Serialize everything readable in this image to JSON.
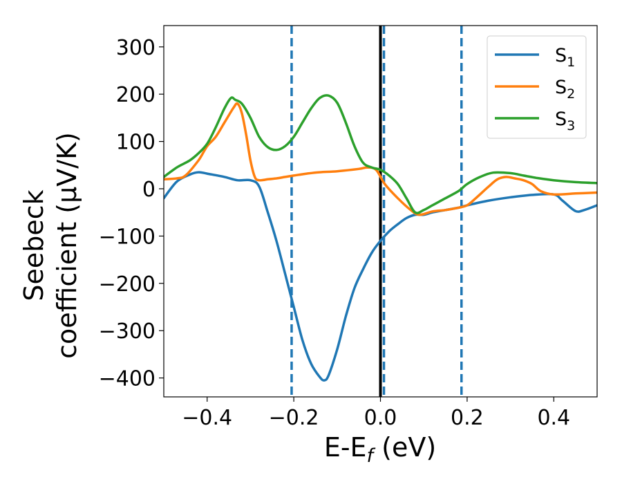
{
  "chart_data": {
    "type": "line",
    "xlabel_main": "E-E",
    "xlabel_sub": "f",
    "xlabel_tail": " (eV)",
    "ylabel_line1": "Seebeck",
    "ylabel_line2": "coefficient  (μV/K)",
    "xlim": [
      -0.5,
      0.5
    ],
    "ylim": [
      -440,
      345
    ],
    "xticks": [
      -0.4,
      -0.2,
      0.0,
      0.2,
      0.4
    ],
    "xtick_labels": [
      "−0.4",
      "−0.2",
      "0.0",
      "0.2",
      "0.4"
    ],
    "yticks": [
      300,
      200,
      100,
      0,
      -100,
      -200,
      -300,
      -400
    ],
    "ytick_labels": [
      "300",
      "200",
      "100",
      "0",
      "−100",
      "−200",
      "−300",
      "−400"
    ],
    "grid": false,
    "legend_position": "top-right",
    "vlines": [
      {
        "x": -0.205,
        "style": "dashed",
        "color": "#1f77b4"
      },
      {
        "x": 0.0,
        "style": "solid",
        "color": "#000000"
      },
      {
        "x": 0.008,
        "style": "dashed",
        "color": "#1f77b4"
      },
      {
        "x": 0.187,
        "style": "dashed",
        "color": "#1f77b4"
      }
    ],
    "series": [
      {
        "name": "S",
        "sub": "1",
        "color": "#1f77b4",
        "x": [
          -0.5,
          -0.47,
          -0.44,
          -0.42,
          -0.4,
          -0.36,
          -0.33,
          -0.3,
          -0.28,
          -0.26,
          -0.24,
          -0.22,
          -0.2,
          -0.18,
          -0.16,
          -0.14,
          -0.13,
          -0.12,
          -0.1,
          -0.08,
          -0.06,
          -0.04,
          -0.02,
          0.0,
          0.02,
          0.04,
          0.06,
          0.08,
          0.1,
          0.12,
          0.15,
          0.18,
          0.2,
          0.25,
          0.3,
          0.35,
          0.4,
          0.42,
          0.45,
          0.47,
          0.5
        ],
        "y": [
          -20,
          15,
          30,
          35,
          32,
          25,
          18,
          18,
          5,
          -50,
          -110,
          -180,
          -250,
          -320,
          -370,
          -398,
          -405,
          -395,
          -340,
          -270,
          -210,
          -170,
          -135,
          -110,
          -90,
          -75,
          -62,
          -55,
          -55,
          -50,
          -45,
          -40,
          -35,
          -25,
          -18,
          -13,
          -12,
          -25,
          -47,
          -45,
          -35
        ]
      },
      {
        "name": "S",
        "sub": "2",
        "color": "#ff7f0e",
        "x": [
          -0.5,
          -0.47,
          -0.45,
          -0.42,
          -0.4,
          -0.38,
          -0.36,
          -0.34,
          -0.33,
          -0.32,
          -0.31,
          -0.3,
          -0.29,
          -0.28,
          -0.26,
          -0.24,
          -0.22,
          -0.2,
          -0.17,
          -0.14,
          -0.1,
          -0.05,
          -0.03,
          -0.01,
          0.01,
          0.04,
          0.07,
          0.09,
          0.12,
          0.15,
          0.18,
          0.2,
          0.22,
          0.25,
          0.27,
          0.29,
          0.31,
          0.33,
          0.35,
          0.37,
          0.4,
          0.45,
          0.5
        ],
        "y": [
          20,
          22,
          28,
          60,
          90,
          110,
          140,
          170,
          180,
          160,
          115,
          60,
          25,
          18,
          20,
          22,
          25,
          28,
          32,
          35,
          37,
          42,
          45,
          40,
          10,
          -20,
          -45,
          -55,
          -48,
          -45,
          -40,
          -35,
          -20,
          5,
          20,
          25,
          22,
          18,
          10,
          -5,
          -12,
          -10,
          -8
        ]
      },
      {
        "name": "S",
        "sub": "3",
        "color": "#2ca02c",
        "x": [
          -0.5,
          -0.47,
          -0.44,
          -0.42,
          -0.4,
          -0.38,
          -0.36,
          -0.345,
          -0.335,
          -0.32,
          -0.3,
          -0.28,
          -0.26,
          -0.24,
          -0.22,
          -0.2,
          -0.18,
          -0.16,
          -0.14,
          -0.12,
          -0.1,
          -0.08,
          -0.06,
          -0.04,
          -0.02,
          0.0,
          0.02,
          0.04,
          0.06,
          0.08,
          0.1,
          0.12,
          0.15,
          0.18,
          0.2,
          0.23,
          0.26,
          0.3,
          0.33,
          0.36,
          0.4,
          0.45,
          0.5
        ],
        "y": [
          25,
          45,
          60,
          75,
          95,
          130,
          170,
          192,
          188,
          180,
          150,
          110,
          88,
          82,
          90,
          110,
          140,
          170,
          192,
          197,
          182,
          140,
          90,
          55,
          45,
          40,
          28,
          10,
          -20,
          -50,
          -45,
          -35,
          -20,
          -5,
          10,
          25,
          34,
          33,
          28,
          23,
          18,
          14,
          12
        ]
      }
    ]
  }
}
